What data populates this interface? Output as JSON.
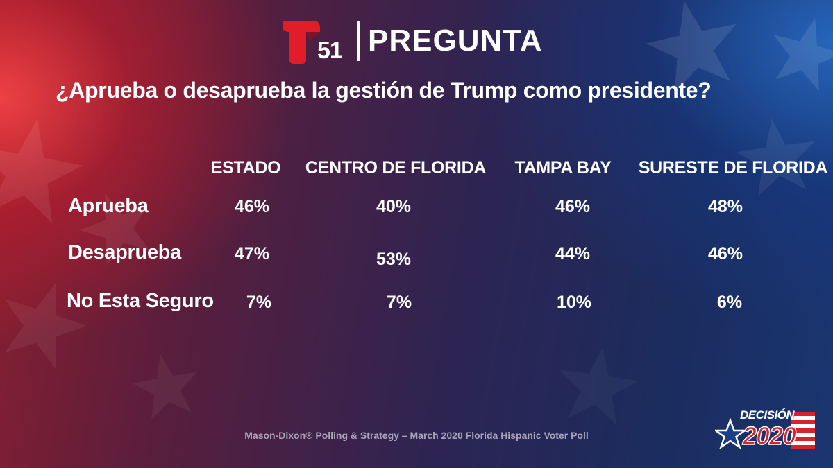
{
  "brand": {
    "logo_number": "51",
    "title": "PREGUNTA"
  },
  "question": "¿Aprueba o desaprueba la gestión de Trump como presidente?",
  "chart_data": {
    "type": "table",
    "columns": [
      "ESTADO",
      "CENTRO DE FLORIDA",
      "TAMPA BAY",
      "SURESTE DE FLORIDA"
    ],
    "rows": [
      {
        "label": "Aprueba",
        "values": [
          "46%",
          "40%",
          "46%",
          "48%"
        ]
      },
      {
        "label": "Desaprueba",
        "values": [
          "47%",
          "53%",
          "44%",
          "46%"
        ]
      },
      {
        "label": "No Esta Seguro",
        "values": [
          "7%",
          "7%",
          "10%",
          "6%"
        ]
      }
    ]
  },
  "footer": "Mason-Dixon® Polling & Strategy – March 2020 Florida Hispanic Voter Poll",
  "badge": {
    "top": "DECISIÓN",
    "year": "2020"
  },
  "colors": {
    "logo_red": "#e11d2a",
    "badge_red": "#d8232a",
    "badge_blue": "#1d3f8a",
    "footer_text": "#a9a4b8"
  }
}
